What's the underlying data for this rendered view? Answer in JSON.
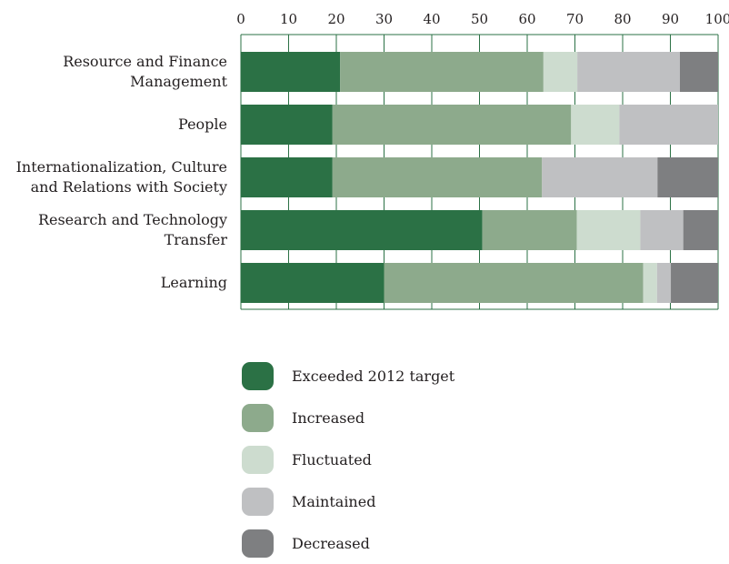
{
  "chart_data": {
    "type": "bar",
    "orientation": "horizontal",
    "stacked": true,
    "xlim": [
      0,
      100
    ],
    "xticks": [
      "0",
      "10",
      "20",
      "30",
      "40",
      "50",
      "60",
      "70",
      "80",
      "90",
      "100"
    ],
    "categories": [
      [
        "Resource and Finance",
        "Management"
      ],
      [
        "People"
      ],
      [
        "Internationalization, Culture",
        "and Relations with Society"
      ],
      [
        "Research and Technology",
        "Transfer"
      ],
      [
        "Learning"
      ]
    ],
    "series": [
      {
        "name": "Exceeded 2012 target",
        "color": "#2b7145",
        "values": [
          20.8,
          19.2,
          19.2,
          50.6,
          30.0
        ]
      },
      {
        "name": "Increased",
        "color": "#8daa8c",
        "values": [
          42.6,
          50.0,
          43.9,
          19.8,
          54.3
        ]
      },
      {
        "name": "Fluctuated",
        "color": "#cddccf",
        "values": [
          7.1,
          10.1,
          0.0,
          13.3,
          2.9
        ]
      },
      {
        "name": "Maintained",
        "color": "#bfc0c2",
        "values": [
          21.5,
          20.7,
          24.2,
          9.0,
          2.9
        ]
      },
      {
        "name": "Decreased",
        "color": "#7e7f81",
        "values": [
          8.0,
          0.0,
          12.7,
          7.3,
          9.9
        ]
      }
    ],
    "grid": true,
    "axis_position": "top",
    "legend_position": "bottom"
  }
}
